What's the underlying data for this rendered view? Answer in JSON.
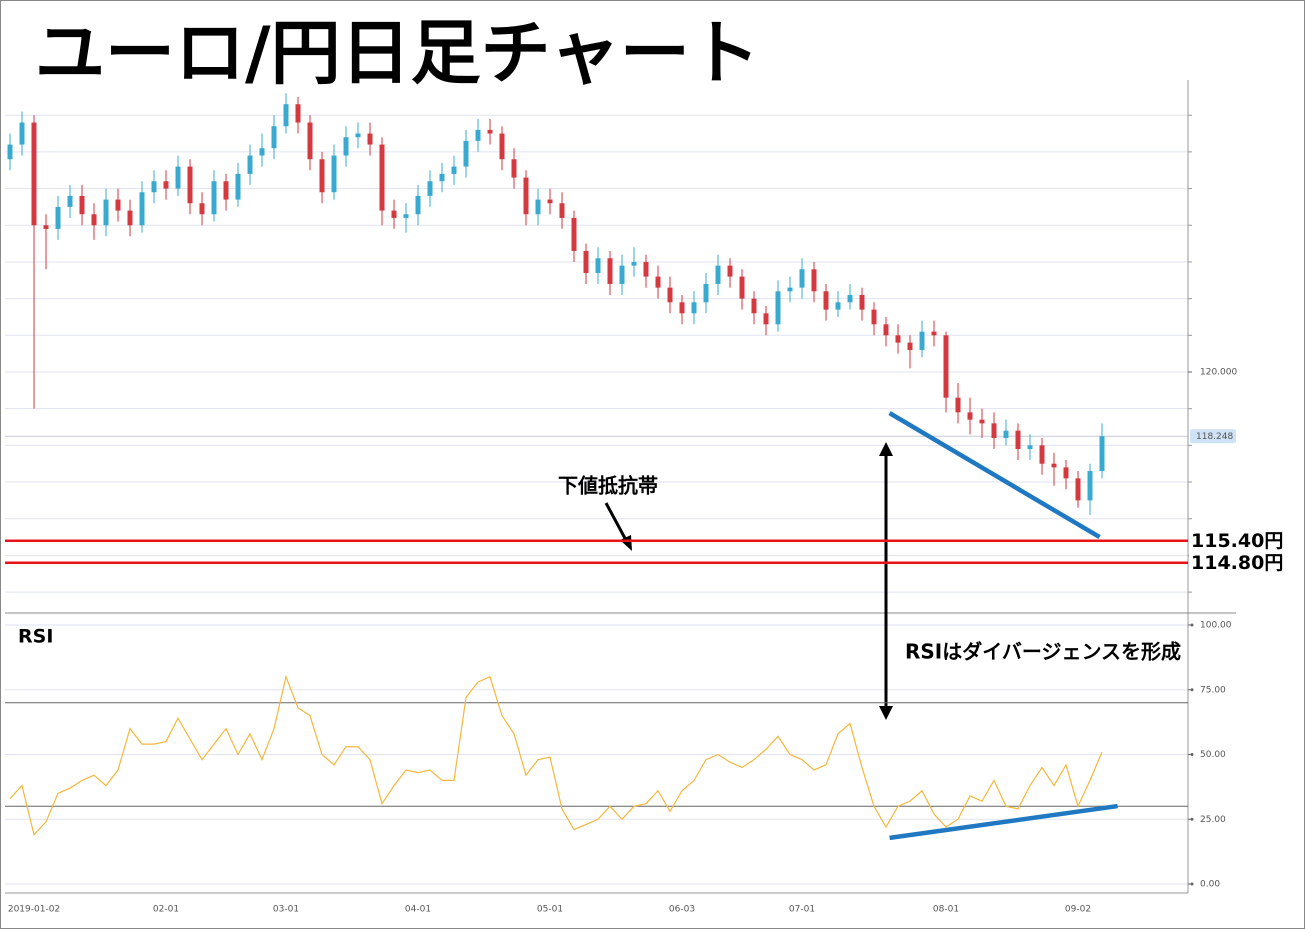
{
  "chart_data": {
    "type": "candlestick",
    "title": "ユーロ/円日足チャート",
    "categories": [
      null,
      null,
      "2019-01-02",
      null,
      null,
      null,
      null,
      null,
      null,
      null,
      null,
      null,
      null,
      "02-01",
      null,
      null,
      null,
      null,
      null,
      null,
      null,
      null,
      null,
      "03-01",
      null,
      null,
      null,
      null,
      null,
      null,
      null,
      null,
      null,
      null,
      "04-01",
      null,
      null,
      null,
      null,
      null,
      null,
      null,
      null,
      null,
      null,
      "05-01",
      null,
      null,
      null,
      null,
      null,
      null,
      null,
      null,
      null,
      null,
      "06-03",
      null,
      null,
      null,
      null,
      null,
      null,
      null,
      null,
      null,
      "07-01",
      null,
      null,
      null,
      null,
      null,
      null,
      null,
      null,
      null,
      null,
      null,
      "08-01",
      null,
      null,
      null,
      null,
      null,
      null,
      null,
      null,
      null,
      null,
      "09-02",
      null,
      null
    ],
    "open": [
      125.8,
      126.2,
      126.8,
      124.0,
      123.9,
      124.5,
      124.8,
      124.3,
      124.0,
      124.7,
      124.4,
      124.0,
      124.9,
      125.2,
      125.0,
      125.6,
      124.6,
      124.3,
      125.2,
      124.7,
      125.4,
      125.9,
      126.1,
      126.7,
      127.3,
      126.8,
      125.8,
      124.9,
      125.9,
      126.4,
      126.5,
      126.2,
      124.4,
      124.2,
      124.3,
      124.8,
      125.2,
      125.4,
      125.6,
      126.3,
      126.6,
      126.5,
      125.8,
      125.3,
      124.3,
      124.7,
      124.6,
      124.2,
      123.3,
      122.7,
      123.1,
      122.4,
      122.9,
      123.0,
      122.6,
      122.3,
      121.9,
      121.6,
      121.9,
      122.4,
      122.9,
      122.6,
      122.0,
      121.6,
      121.3,
      122.2,
      122.3,
      122.8,
      122.2,
      121.7,
      121.9,
      122.1,
      121.7,
      121.3,
      121.0,
      120.8,
      120.6,
      121.1,
      121.0,
      119.3,
      118.9,
      118.7,
      118.6,
      118.2,
      118.4,
      117.9,
      118.0,
      117.5,
      117.4,
      117.1,
      116.5,
      117.3
    ],
    "high": [
      126.5,
      127.1,
      127.0,
      124.3,
      124.8,
      125.1,
      125.1,
      124.6,
      125.0,
      125.0,
      124.7,
      125.2,
      125.5,
      125.5,
      125.9,
      125.8,
      124.9,
      125.5,
      125.4,
      125.7,
      126.2,
      126.5,
      127.0,
      127.6,
      127.5,
      127.0,
      126.0,
      126.2,
      126.7,
      126.8,
      126.8,
      126.4,
      124.7,
      124.6,
      125.1,
      125.5,
      125.7,
      125.9,
      126.6,
      126.9,
      126.9,
      126.7,
      126.1,
      125.5,
      125.0,
      125.0,
      124.9,
      124.4,
      123.5,
      123.4,
      123.3,
      123.2,
      123.4,
      123.2,
      122.9,
      122.6,
      122.1,
      122.2,
      122.7,
      123.2,
      123.1,
      122.8,
      122.2,
      121.8,
      122.5,
      122.6,
      123.1,
      123.0,
      122.4,
      122.2,
      122.4,
      122.3,
      121.9,
      121.5,
      121.3,
      121.0,
      121.4,
      121.4,
      121.1,
      119.7,
      119.3,
      119.0,
      118.9,
      118.7,
      118.6,
      118.3,
      118.2,
      117.8,
      117.6,
      117.3,
      117.5,
      118.6
    ],
    "low": [
      125.5,
      125.9,
      119.0,
      122.8,
      123.6,
      124.2,
      124.0,
      123.6,
      123.7,
      124.1,
      123.7,
      123.8,
      124.6,
      124.7,
      124.8,
      124.3,
      124.0,
      124.1,
      124.4,
      124.5,
      125.1,
      125.6,
      125.8,
      126.5,
      126.5,
      125.5,
      124.6,
      124.7,
      125.6,
      126.1,
      125.9,
      124.0,
      123.9,
      123.8,
      124.0,
      124.5,
      124.9,
      125.1,
      125.3,
      126.0,
      126.2,
      125.5,
      125.0,
      124.0,
      124.0,
      124.3,
      123.9,
      123.0,
      122.4,
      122.4,
      122.1,
      122.1,
      122.6,
      122.3,
      122.0,
      121.6,
      121.3,
      121.3,
      121.6,
      122.1,
      122.3,
      121.7,
      121.3,
      121.0,
      121.1,
      121.9,
      122.0,
      121.9,
      121.4,
      121.5,
      121.7,
      121.4,
      121.0,
      120.7,
      120.5,
      120.1,
      120.4,
      120.7,
      118.9,
      118.6,
      118.3,
      118.2,
      117.9,
      118.0,
      117.6,
      117.6,
      117.2,
      116.9,
      116.8,
      116.3,
      116.1,
      117.1
    ],
    "close": [
      126.2,
      126.8,
      124.0,
      123.9,
      124.5,
      124.8,
      124.3,
      124.0,
      124.7,
      124.4,
      124.0,
      124.9,
      125.2,
      125.0,
      125.6,
      124.6,
      124.3,
      125.2,
      124.7,
      125.4,
      125.9,
      126.1,
      126.7,
      127.3,
      126.8,
      125.8,
      124.9,
      125.9,
      126.4,
      126.5,
      126.2,
      124.4,
      124.2,
      124.3,
      124.8,
      125.2,
      125.4,
      125.6,
      126.3,
      126.6,
      126.5,
      125.8,
      125.3,
      124.3,
      124.7,
      124.6,
      124.2,
      123.3,
      122.7,
      123.1,
      122.4,
      122.9,
      123.0,
      122.6,
      122.3,
      121.9,
      121.6,
      121.9,
      122.4,
      122.9,
      122.6,
      122.0,
      121.6,
      121.3,
      122.2,
      122.3,
      122.8,
      122.2,
      121.7,
      121.9,
      122.1,
      121.7,
      121.3,
      121.0,
      120.8,
      120.6,
      121.1,
      121.0,
      119.3,
      118.9,
      118.7,
      118.6,
      118.2,
      118.4,
      117.9,
      118.0,
      117.5,
      117.4,
      117.1,
      116.5,
      117.3,
      118.25
    ],
    "up_color": "#3aa9d0",
    "down_color": "#d23a3f",
    "ylim": [
      113.43,
      127.96
    ],
    "yticks": [
      {
        "value": 120,
        "label": "120.000"
      }
    ],
    "minor_yticks": [
      114,
      115,
      116,
      117,
      118,
      119,
      120,
      121,
      122,
      123,
      124,
      125,
      126,
      127
    ],
    "last_price": 118.248,
    "hlines": [
      {
        "value": 115.4,
        "label": "115.40円",
        "color": "#e8141b"
      },
      {
        "value": 114.8,
        "label": "114.80円",
        "color": "#e8141b"
      }
    ],
    "annotations": [
      "下値抵抗帯",
      "RSIはダイバージェンスを形成"
    ],
    "trendlines": [
      {
        "pane": "price",
        "x": [
          73.3,
          90.8
        ],
        "y": [
          118.88,
          115.5
        ],
        "color": "#1f78c1"
      },
      {
        "pane": "rsi",
        "x": [
          73.3,
          92.3
        ],
        "y": [
          17.8,
          30.1
        ],
        "color": "#1f78c1"
      }
    ],
    "rsi": {
      "type": "line",
      "title": "RSI",
      "color": "#f5b73c",
      "values": [
        33,
        38,
        19,
        24,
        35,
        37,
        40,
        42,
        38,
        44,
        60,
        54,
        54,
        55,
        64,
        56,
        48,
        54,
        60,
        50,
        58,
        48,
        60,
        80,
        68,
        65,
        50,
        46,
        53,
        53,
        48,
        31,
        38,
        44,
        43,
        44,
        40,
        40,
        72,
        78,
        80,
        65,
        58,
        42,
        48,
        49,
        29,
        21,
        23,
        25,
        30,
        25,
        30,
        31,
        36,
        28,
        36,
        40,
        48,
        50,
        47,
        45,
        48,
        52,
        57,
        50,
        48,
        44,
        46,
        58,
        62,
        45,
        30,
        22,
        30,
        32,
        36,
        27,
        22,
        25,
        34,
        32,
        40,
        30,
        29,
        38,
        45,
        38,
        46,
        30,
        40,
        51
      ],
      "ylim": [
        0,
        100
      ],
      "yticks": [
        {
          "value": 100,
          "label": "100.00"
        },
        {
          "value": 75,
          "label": "75.00"
        },
        {
          "value": 50,
          "label": "50.00"
        },
        {
          "value": 25,
          "label": "25.00"
        },
        {
          "value": 0,
          "label": "0.00"
        }
      ],
      "levels": [
        30,
        70
      ]
    }
  }
}
